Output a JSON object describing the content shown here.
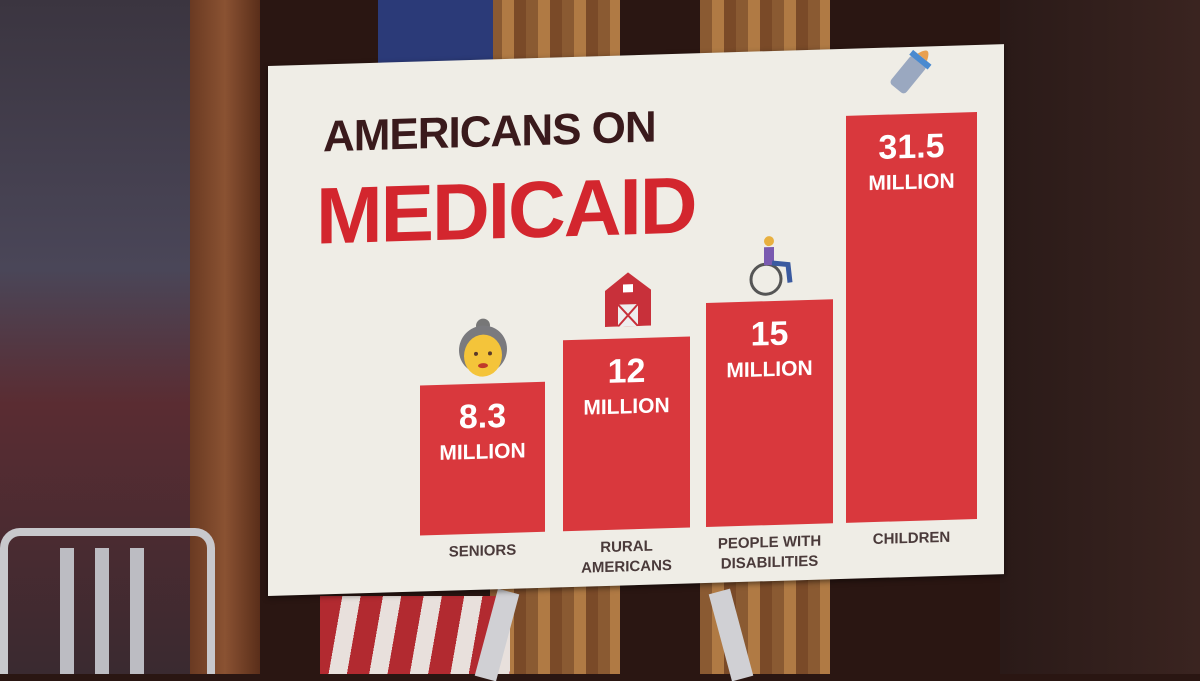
{
  "chart_data": {
    "type": "bar",
    "title": "AMERICANS ON",
    "subtitle": "MEDICAID",
    "categories": [
      "SENIORS",
      "RURAL AMERICANS",
      "PEOPLE WITH DISABILITIES",
      "CHILDREN"
    ],
    "category_lines": [
      [
        "SENIORS"
      ],
      [
        "RURAL",
        "AMERICANS"
      ],
      [
        "PEOPLE WITH",
        "DISABILITIES"
      ],
      [
        "CHILDREN"
      ]
    ],
    "values": [
      8.3,
      12,
      15,
      31.5
    ],
    "value_labels": [
      "8.3",
      "12",
      "15",
      "31.5"
    ],
    "unit_label": "MILLION",
    "icons": [
      "older-woman-icon",
      "barn-icon",
      "wheelchair-user-icon",
      "baby-bottle-icon"
    ],
    "colors": {
      "bar": "#d9383d",
      "title": "#3a1a1c",
      "subtitle": "#d3262e",
      "board": "#efede6"
    },
    "grid": false,
    "legend": "none"
  }
}
